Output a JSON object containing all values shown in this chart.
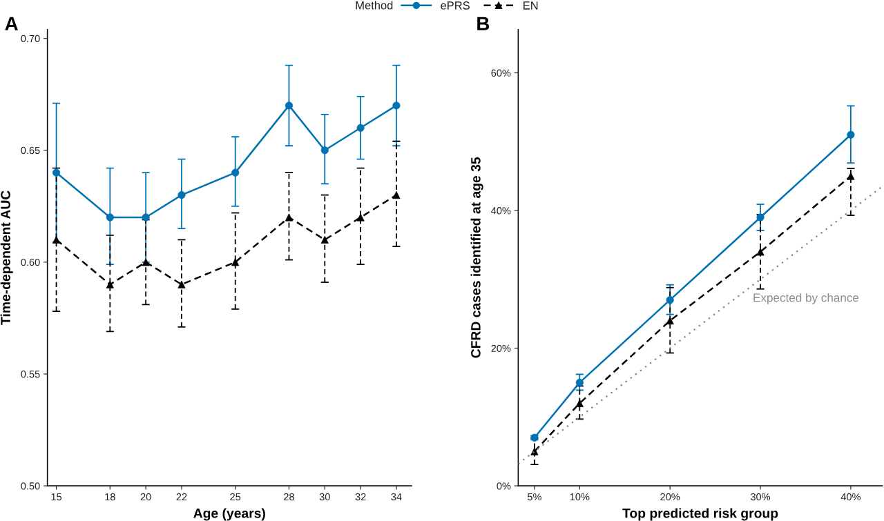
{
  "chart_data": [
    {
      "type": "line",
      "title": "A",
      "xlabel": "Age (years)",
      "ylabel": "Time-dependent AUC",
      "legend_title": "Method",
      "legend": "top",
      "x": [
        15,
        18,
        20,
        22,
        25,
        28,
        30,
        32,
        34
      ],
      "xlim": [
        14.5,
        34.85
      ],
      "xticks": [
        15,
        18,
        20,
        22,
        25,
        28,
        30,
        32,
        34
      ],
      "ylim": [
        0.5,
        0.704
      ],
      "yticks": [
        {
          "value": 0.5,
          "label": "0.50"
        },
        {
          "value": 0.55,
          "label": "0.55"
        },
        {
          "value": 0.6,
          "label": "0.60"
        },
        {
          "value": 0.65,
          "label": "0.65"
        },
        {
          "value": 0.7,
          "label": "0.70"
        }
      ],
      "series": [
        {
          "name": "ePRS",
          "color": "#0072b2",
          "marker": "circle",
          "line_style": "solid",
          "values": [
            0.64,
            0.62,
            0.62,
            0.63,
            0.64,
            0.67,
            0.65,
            0.66,
            0.67
          ],
          "errors": [
            [
              0.609,
              0.671
            ],
            [
              0.599,
              0.642
            ],
            [
              0.6,
              0.64
            ],
            [
              0.615,
              0.646
            ],
            [
              0.625,
              0.656
            ],
            [
              0.652,
              0.688
            ],
            [
              0.635,
              0.666
            ],
            [
              0.646,
              0.674
            ],
            [
              0.652,
              0.688
            ]
          ]
        },
        {
          "name": "EN",
          "color": "#000000",
          "marker": "triangle",
          "line_style": "dashed",
          "values": [
            0.61,
            0.59,
            0.6,
            0.59,
            0.6,
            0.62,
            0.61,
            0.62,
            0.63
          ],
          "errors": [
            [
              0.578,
              0.642
            ],
            [
              0.569,
              0.612
            ],
            [
              0.581,
              0.619
            ],
            [
              0.571,
              0.61
            ],
            [
              0.579,
              0.622
            ],
            [
              0.601,
              0.64
            ],
            [
              0.591,
              0.63
            ],
            [
              0.599,
              0.642
            ],
            [
              0.607,
              0.654
            ]
          ]
        }
      ]
    },
    {
      "type": "line",
      "title": "B",
      "xlabel": "Top predicted risk group",
      "ylabel": "CFRD cases identified at age 35",
      "legend": "top",
      "x": [
        5,
        10,
        20,
        30,
        40
      ],
      "xlim": [
        3.2,
        43.5
      ],
      "xticks": [
        {
          "value": 5,
          "label": "5%"
        },
        {
          "value": 10,
          "label": "10%"
        },
        {
          "value": 20,
          "label": "20%"
        },
        {
          "value": 30,
          "label": "30%"
        },
        {
          "value": 40,
          "label": "40%"
        }
      ],
      "ylim": [
        0,
        66.3
      ],
      "yticks": [
        {
          "value": 0,
          "label": "0%"
        },
        {
          "value": 20,
          "label": "20%"
        },
        {
          "value": 40,
          "label": "40%"
        },
        {
          "value": 60,
          "label": "60%"
        }
      ],
      "series": [
        {
          "name": "ePRS",
          "color": "#0072b2",
          "marker": "circle",
          "line_style": "solid",
          "values": [
            7,
            15,
            27,
            39,
            51
          ],
          "errors": [
            [
              6.7,
              7.3
            ],
            [
              13.9,
              16.2
            ],
            [
              24.9,
              29.2
            ],
            [
              37.1,
              40.9
            ],
            [
              46.9,
              55.2
            ]
          ]
        },
        {
          "name": "EN",
          "color": "#000000",
          "marker": "triangle",
          "line_style": "dashed",
          "values": [
            5,
            12,
            24,
            34,
            45
          ],
          "errors": [
            [
              3.1,
              6.9
            ],
            [
              9.7,
              14.5
            ],
            [
              19.3,
              28.8
            ],
            [
              28.6,
              39.4
            ],
            [
              39.3,
              46.1
            ]
          ]
        },
        {
          "color": "#808080",
          "marker": "none",
          "line_style": "dotted",
          "x": [
            3.2,
            43.5
          ],
          "values": [
            3.2,
            43.5
          ]
        }
      ],
      "annotations": [
        "Expected by chance"
      ]
    }
  ]
}
